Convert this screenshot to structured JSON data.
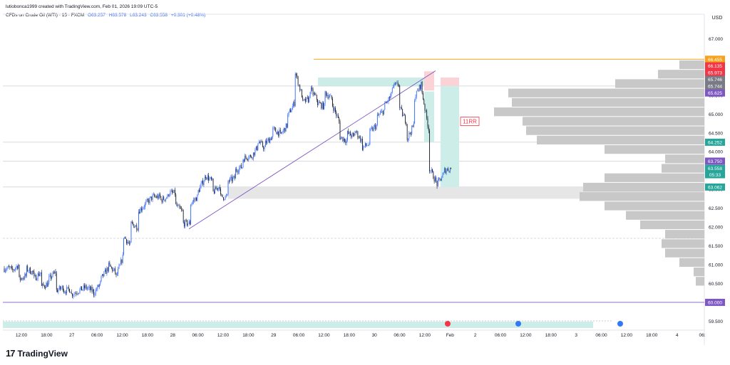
{
  "header": {
    "created_by": "lutiobonca1999 created with TradingView.com, Feb 01, 2026 19:09 UTC-5",
    "symbol": "CFDs on Crude Oil (WTI) · 15 · FXCM",
    "open": "O63.257",
    "high": "H63.578",
    "low": "L63.243",
    "close": "C63.558",
    "change": "+0.301 (+0.48%)"
  },
  "brand": {
    "logo_glyph": "17",
    "name": "TradingView"
  },
  "colors": {
    "up": "#2962ff",
    "down": "#131722",
    "profile": "#c8c8c8",
    "profile_dark": "#a8a8a8",
    "orange": "#f7a21b",
    "purple": "#7e57c2",
    "teal": "#22ab94",
    "red": "#f23645"
  },
  "chart_data": {
    "type": "candlestick",
    "title": "CFDs on Crude Oil (WTI) · 15 · FXCM",
    "currency": "USD",
    "ylim": [
      59.3,
      67.5
    ],
    "y_ticks": [
      67.0,
      66.5,
      66.0,
      65.5,
      65.0,
      64.5,
      64.0,
      63.5,
      63.0,
      62.5,
      62.0,
      61.5,
      61.0,
      60.5,
      59.5
    ],
    "x_ticks": [
      "12:00",
      "18:00",
      "27",
      "06:00",
      "12:00",
      "18:00",
      "28",
      "06:00",
      "12:00",
      "18:00",
      "29",
      "06:00",
      "12:00",
      "18:00",
      "30",
      "06:00",
      "12:00",
      "Feb",
      "2",
      "06:00",
      "12:00",
      "18:00",
      "3",
      "06:00",
      "12:00",
      "18:00",
      "4",
      "06:"
    ],
    "price_path": [
      [
        60.9,
        60.9
      ],
      [
        60.8,
        61.0
      ],
      [
        60.6,
        60.7
      ],
      [
        60.9,
        60.8
      ],
      [
        60.6,
        60.8
      ],
      [
        60.4,
        60.5
      ],
      [
        60.6,
        60.8
      ],
      [
        60.3,
        60.4
      ],
      [
        60.3,
        60.35
      ],
      [
        60.2,
        60.3
      ],
      [
        60.3,
        60.4
      ],
      [
        60.4,
        60.3
      ],
      [
        60.2,
        60.5
      ],
      [
        60.6,
        60.9
      ],
      [
        61.0,
        60.8
      ],
      [
        60.6,
        61.2
      ],
      [
        61.8,
        61.5
      ],
      [
        62.1,
        62.0
      ],
      [
        62.4,
        62.6
      ],
      [
        62.6,
        62.8
      ],
      [
        62.8,
        62.8
      ],
      [
        62.7,
        62.8
      ],
      [
        62.9,
        62.9
      ],
      [
        62.6,
        62.4
      ],
      [
        62.1,
        62.1
      ],
      [
        62.6,
        62.8
      ],
      [
        62.9,
        63.3
      ],
      [
        63.4,
        63.2
      ],
      [
        62.9,
        63.1
      ],
      [
        62.8,
        62.8
      ],
      [
        63.2,
        63.3
      ],
      [
        63.5,
        63.6
      ],
      [
        63.8,
        63.9
      ],
      [
        63.8,
        64.1
      ],
      [
        64.3,
        64.1
      ],
      [
        64.2,
        64.4
      ],
      [
        64.6,
        64.5
      ],
      [
        64.4,
        64.7
      ],
      [
        64.9,
        65.3
      ],
      [
        66.2,
        65.5
      ],
      [
        65.3,
        65.4
      ],
      [
        65.7,
        65.4
      ],
      [
        65.3,
        65.2
      ],
      [
        65.6,
        65.4
      ],
      [
        65.3,
        64.8
      ],
      [
        64.4,
        64.3
      ],
      [
        64.5,
        64.4
      ],
      [
        64.6,
        64.3
      ],
      [
        64.1,
        64.2
      ],
      [
        64.5,
        64.7
      ],
      [
        64.9,
        65.1
      ],
      [
        65.2,
        65.5
      ],
      [
        65.7,
        65.8
      ],
      [
        65.2,
        64.8
      ],
      [
        64.3,
        64.7
      ],
      [
        65.4,
        65.8
      ],
      [
        65.7,
        64.6
      ],
      [
        63.6,
        63.2
      ],
      [
        63.1,
        63.4
      ],
      [
        63.5,
        63.558
      ]
    ],
    "series_levels": {
      "last_price": 63.558,
      "high_line": 66.455,
      "horizontal_levels": [
        65.744,
        64.252,
        63.75,
        63.062,
        61.7,
        60.0
      ]
    },
    "price_labels": [
      {
        "text": "66.455",
        "kind": "orange"
      },
      {
        "text": "66.135",
        "kind": "red"
      },
      {
        "text": "65.973",
        "kind": "red"
      },
      {
        "text": "65.746",
        "kind": "gray"
      },
      {
        "text": "65.744",
        "kind": "gray"
      },
      {
        "text": "65.625",
        "kind": "purple"
      },
      {
        "text": "64.252",
        "kind": "green"
      },
      {
        "text": "63.750",
        "kind": "purple"
      },
      {
        "text": "63.558",
        "kind": "teal"
      },
      {
        "text": "05:33",
        "kind": "teal"
      },
      {
        "text": "63.062",
        "kind": "green"
      },
      {
        "text": "60.000",
        "kind": "purple"
      }
    ],
    "annotations": {
      "rr_label": "11RR"
    },
    "volume_profile": [
      [
        66.3,
        35
      ],
      [
        66.05,
        65
      ],
      [
        65.8,
        125
      ],
      [
        65.55,
        275
      ],
      [
        65.3,
        270
      ],
      [
        65.05,
        295
      ],
      [
        64.8,
        255
      ],
      [
        64.55,
        250
      ],
      [
        64.3,
        235
      ],
      [
        64.05,
        140
      ],
      [
        63.8,
        55
      ],
      [
        63.55,
        60
      ],
      [
        63.3,
        140
      ],
      [
        63.05,
        170
      ],
      [
        62.8,
        175
      ],
      [
        62.55,
        140
      ],
      [
        62.3,
        110
      ],
      [
        62.05,
        90
      ],
      [
        61.8,
        55
      ],
      [
        61.55,
        60
      ],
      [
        61.3,
        55
      ],
      [
        61.05,
        35
      ],
      [
        60.8,
        15
      ],
      [
        60.55,
        12
      ]
    ]
  }
}
